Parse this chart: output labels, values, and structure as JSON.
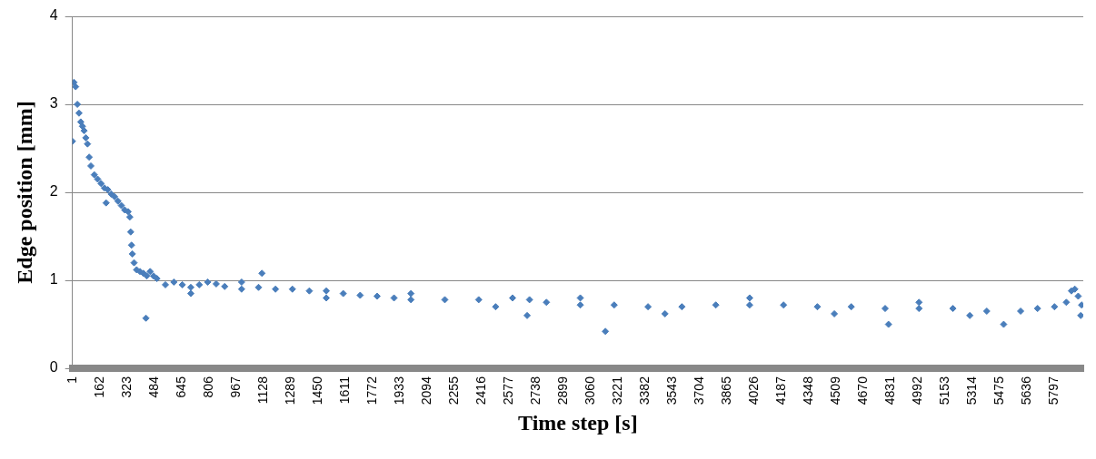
{
  "chart_data": {
    "type": "scatter",
    "xlabel": "Time step [s]",
    "ylabel": "Edge position [mm]",
    "marker": "diamond",
    "grid": "y",
    "xlim": [
      1,
      5970
    ],
    "ylim": [
      0,
      4
    ],
    "yticks": [
      0,
      1,
      2,
      3,
      4
    ],
    "xticks": [
      1,
      162,
      323,
      484,
      645,
      806,
      967,
      1128,
      1289,
      1450,
      1611,
      1772,
      1933,
      2094,
      2255,
      2416,
      2577,
      2738,
      2899,
      3060,
      3221,
      3382,
      3543,
      3704,
      3865,
      4026,
      4187,
      4348,
      4509,
      4670,
      4831,
      4992,
      5153,
      5314,
      5475,
      5636,
      5797
    ],
    "series": [
      {
        "color": "#4a7ebb",
        "x": [
          1,
          10,
          20,
          30,
          40,
          50,
          60,
          70,
          80,
          90,
          100,
          110,
          130,
          150,
          170,
          190,
          200,
          210,
          230,
          250,
          270,
          290,
          310,
          330,
          340,
          345,
          350,
          355,
          365,
          380,
          400,
          420,
          435,
          440,
          460,
          480,
          500,
          550,
          600,
          650,
          700,
          700,
          750,
          800,
          850,
          900,
          1000,
          1000,
          1100,
          1120,
          1200,
          1300,
          1400,
          1500,
          1500,
          1600,
          1700,
          1800,
          1900,
          2000,
          2000,
          2200,
          2400,
          2500,
          2600,
          2686,
          2700,
          2800,
          3000,
          3000,
          3148,
          3200,
          3400,
          3500,
          3600,
          3800,
          4000,
          4000,
          4200,
          4400,
          4500,
          4600,
          4800,
          4820,
          5000,
          5000,
          5200,
          5300,
          5400,
          5500,
          5600,
          5700,
          5800,
          5870,
          5900,
          5920,
          5940,
          5955,
          5960
        ],
        "values": [
          2.58,
          3.25,
          3.2,
          3.0,
          2.9,
          2.8,
          2.75,
          2.7,
          2.62,
          2.55,
          2.4,
          2.3,
          2.2,
          2.15,
          2.1,
          2.05,
          1.88,
          2.03,
          1.98,
          1.95,
          1.9,
          1.85,
          1.8,
          1.78,
          1.72,
          1.55,
          1.4,
          1.3,
          1.2,
          1.12,
          1.1,
          1.08,
          0.57,
          1.05,
          1.1,
          1.05,
          1.02,
          0.95,
          0.98,
          0.95,
          0.92,
          0.85,
          0.95,
          0.98,
          0.96,
          0.93,
          0.9,
          0.98,
          0.92,
          1.08,
          0.9,
          0.9,
          0.88,
          0.88,
          0.8,
          0.85,
          0.83,
          0.82,
          0.8,
          0.78,
          0.85,
          0.78,
          0.78,
          0.7,
          0.8,
          0.6,
          0.78,
          0.75,
          0.72,
          0.8,
          0.42,
          0.72,
          0.7,
          0.62,
          0.7,
          0.72,
          0.72,
          0.8,
          0.72,
          0.7,
          0.62,
          0.7,
          0.68,
          0.5,
          0.68,
          0.75,
          0.68,
          0.6,
          0.65,
          0.5,
          0.65,
          0.68,
          0.7,
          0.75,
          0.88,
          0.9,
          0.82,
          0.6,
          0.72
        ]
      }
    ]
  }
}
